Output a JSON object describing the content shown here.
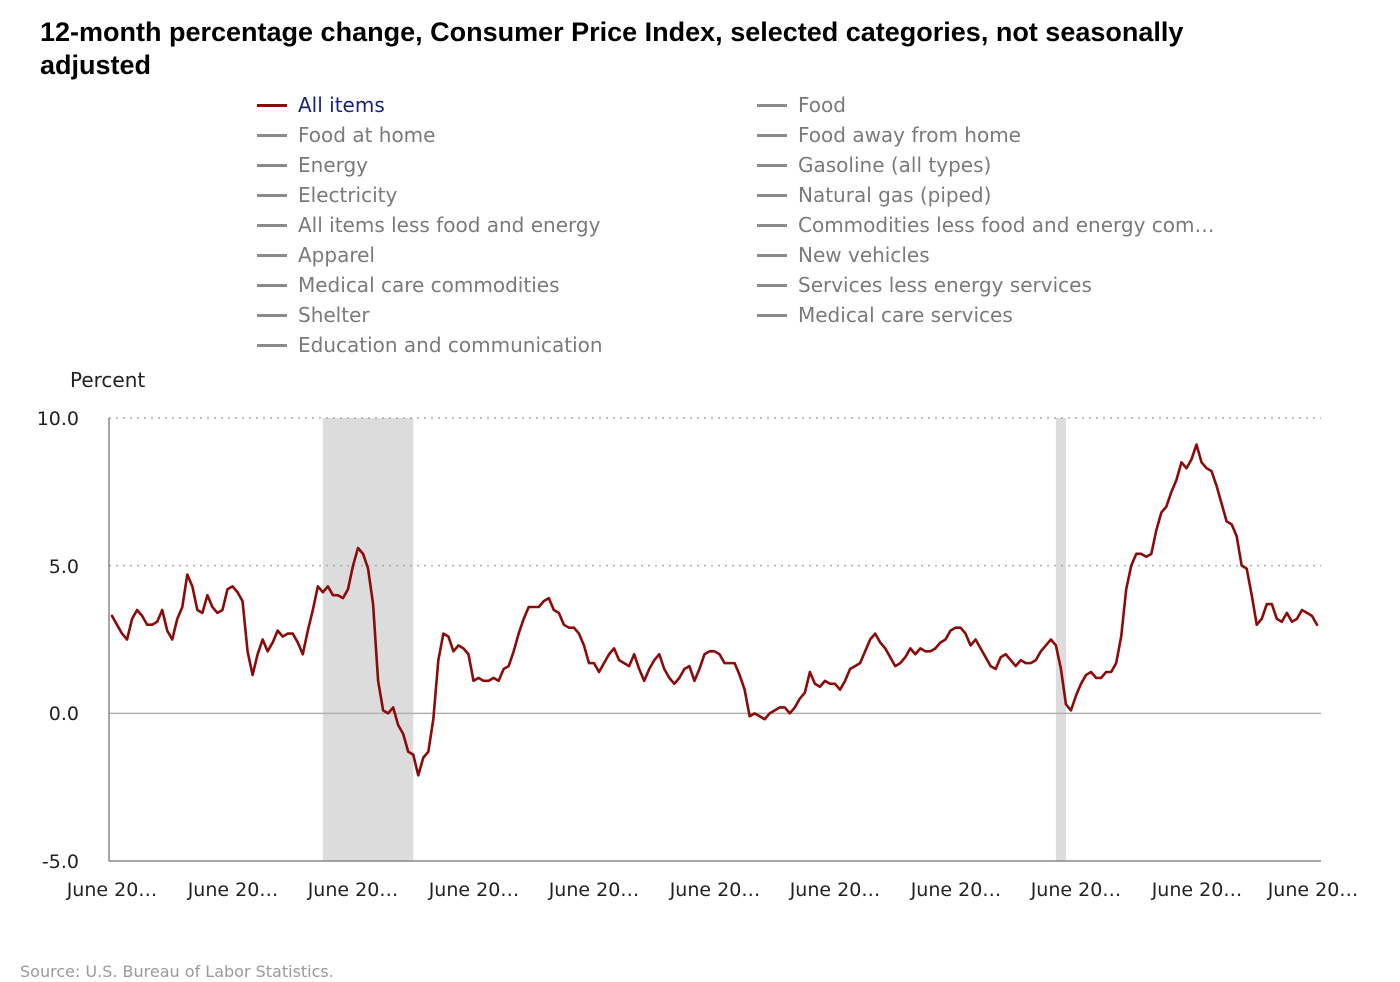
{
  "chart_data": {
    "type": "line",
    "title": "12-month percentage change, Consumer Price Index, selected categories, not seasonally adjusted",
    "ylabel": "Percent",
    "source": "Source: U.S. Bureau of Labor Statistics.",
    "ylim": [
      -5,
      10
    ],
    "y_ticks": [
      "10.0",
      "5.0",
      "0.0",
      "-5.0"
    ],
    "y_tick_values": [
      10,
      5,
      0,
      -5
    ],
    "x_tick_labels": [
      "June 20…",
      "June 20…",
      "June 20…",
      "June 20…",
      "June 20…",
      "June 20…",
      "June 20…",
      "June 20…",
      "June 20…",
      "June 20…",
      "June 20…"
    ],
    "x_start_year": 2004,
    "x_end_year": 2024,
    "grid": "horizontal dotted",
    "legend": [
      {
        "label": "All items",
        "active": true
      },
      {
        "label": "Food",
        "active": false
      },
      {
        "label": "Food at home",
        "active": false
      },
      {
        "label": "Food away from home",
        "active": false
      },
      {
        "label": "Energy",
        "active": false
      },
      {
        "label": "Gasoline (all types)",
        "active": false
      },
      {
        "label": "Electricity",
        "active": false
      },
      {
        "label": "Natural gas (piped)",
        "active": false
      },
      {
        "label": "All items less food and energy",
        "active": false
      },
      {
        "label": "Commodities less food and energy com…",
        "active": false
      },
      {
        "label": "Apparel",
        "active": false
      },
      {
        "label": "New vehicles",
        "active": false
      },
      {
        "label": "Medical care commodities",
        "active": false
      },
      {
        "label": "Services less energy services",
        "active": false
      },
      {
        "label": "Shelter",
        "active": false
      },
      {
        "label": "Medical care services",
        "active": false
      },
      {
        "label": "Education and communication",
        "active": false
      }
    ],
    "recessions": [
      {
        "start": "2007-12",
        "end": "2009-06"
      },
      {
        "start": "2020-02",
        "end": "2020-04"
      }
    ],
    "colors": {
      "all_items": "#8b0a0a",
      "inactive": "#8a8a8a",
      "recession": "#dcdcdc",
      "grid": "#aaaaaa"
    },
    "series": [
      {
        "name": "All items",
        "start": "2004-06",
        "values": [
          3.3,
          3.0,
          2.7,
          2.5,
          3.2,
          3.5,
          3.3,
          3.0,
          3.0,
          3.1,
          3.5,
          2.8,
          2.5,
          3.2,
          3.6,
          4.7,
          4.3,
          3.5,
          3.4,
          4.0,
          3.6,
          3.4,
          3.5,
          4.2,
          4.3,
          4.1,
          3.8,
          2.1,
          1.3,
          2.0,
          2.5,
          2.1,
          2.4,
          2.8,
          2.6,
          2.7,
          2.7,
          2.4,
          2.0,
          2.8,
          3.5,
          4.3,
          4.1,
          4.3,
          4.0,
          4.0,
          3.9,
          4.2,
          5.0,
          5.6,
          5.4,
          4.9,
          3.7,
          1.1,
          0.1,
          0.0,
          0.2,
          -0.4,
          -0.7,
          -1.3,
          -1.4,
          -2.1,
          -1.5,
          -1.3,
          -0.2,
          1.8,
          2.7,
          2.6,
          2.1,
          2.3,
          2.2,
          2.0,
          1.1,
          1.2,
          1.1,
          1.1,
          1.2,
          1.1,
          1.5,
          1.6,
          2.1,
          2.7,
          3.2,
          3.6,
          3.6,
          3.6,
          3.8,
          3.9,
          3.5,
          3.4,
          3.0,
          2.9,
          2.9,
          2.7,
          2.3,
          1.7,
          1.7,
          1.4,
          1.7,
          2.0,
          2.2,
          1.8,
          1.7,
          1.6,
          2.0,
          1.5,
          1.1,
          1.5,
          1.8,
          2.0,
          1.5,
          1.2,
          1.0,
          1.2,
          1.5,
          1.6,
          1.1,
          1.5,
          2.0,
          2.1,
          2.1,
          2.0,
          1.7,
          1.7,
          1.7,
          1.3,
          0.8,
          -0.1,
          0.0,
          -0.1,
          -0.2,
          0.0,
          0.1,
          0.2,
          0.2,
          0.0,
          0.2,
          0.5,
          0.7,
          1.4,
          1.0,
          0.9,
          1.1,
          1.0,
          1.0,
          0.8,
          1.1,
          1.5,
          1.6,
          1.7,
          2.1,
          2.5,
          2.7,
          2.4,
          2.2,
          1.9,
          1.6,
          1.7,
          1.9,
          2.2,
          2.0,
          2.2,
          2.1,
          2.1,
          2.2,
          2.4,
          2.5,
          2.8,
          2.9,
          2.9,
          2.7,
          2.3,
          2.5,
          2.2,
          1.9,
          1.6,
          1.5,
          1.9,
          2.0,
          1.8,
          1.6,
          1.8,
          1.7,
          1.7,
          1.8,
          2.1,
          2.3,
          2.5,
          2.3,
          1.5,
          0.3,
          0.1,
          0.6,
          1.0,
          1.3,
          1.4,
          1.2,
          1.2,
          1.4,
          1.4,
          1.7,
          2.6,
          4.2,
          5.0,
          5.4,
          5.4,
          5.3,
          5.4,
          6.2,
          6.8,
          7.0,
          7.5,
          7.9,
          8.5,
          8.3,
          8.6,
          9.1,
          8.5,
          8.3,
          8.2,
          7.7,
          7.1,
          6.5,
          6.4,
          6.0,
          5.0,
          4.9,
          4.0,
          3.0,
          3.2,
          3.7,
          3.7,
          3.2,
          3.1,
          3.4,
          3.1,
          3.2,
          3.5,
          3.4,
          3.3,
          3.0
        ]
      }
    ]
  }
}
